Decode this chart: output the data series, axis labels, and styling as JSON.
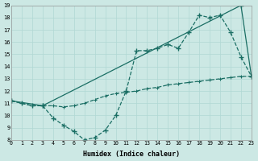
{
  "xlabel": "Humidex (Indice chaleur)",
  "bg_color": "#cce8e4",
  "line_color": "#1a6e64",
  "grid_color": "#b0d8d4",
  "xmin": 0,
  "xmax": 23,
  "ymin": 8,
  "ymax": 19,
  "line1_x": [
    0,
    3,
    22,
    23
  ],
  "line1_y": [
    11.2,
    10.8,
    19.0,
    13.2
  ],
  "line2_x": [
    0,
    1,
    2,
    3,
    4,
    5,
    6,
    7,
    8,
    9,
    10,
    11,
    12,
    13,
    14,
    15,
    16,
    17,
    18,
    19,
    20,
    21,
    22,
    23
  ],
  "line2_y": [
    11.2,
    11.0,
    10.8,
    10.8,
    9.8,
    9.2,
    8.7,
    8.0,
    8.2,
    8.8,
    10.0,
    12.0,
    15.3,
    15.3,
    15.5,
    15.8,
    15.5,
    16.8,
    18.2,
    18.0,
    18.2,
    16.8,
    14.8,
    13.2
  ],
  "line3_x": [
    0,
    1,
    2,
    3,
    4,
    5,
    6,
    7,
    8,
    9,
    10,
    11,
    12,
    13,
    14,
    15,
    16,
    17,
    18,
    19,
    20,
    21,
    22,
    23
  ],
  "line3_y": [
    11.2,
    11.0,
    10.8,
    10.8,
    10.8,
    10.7,
    10.8,
    11.0,
    11.3,
    11.6,
    11.8,
    11.9,
    12.0,
    12.2,
    12.3,
    12.5,
    12.6,
    12.7,
    12.8,
    12.9,
    13.0,
    13.1,
    13.2,
    13.2
  ]
}
